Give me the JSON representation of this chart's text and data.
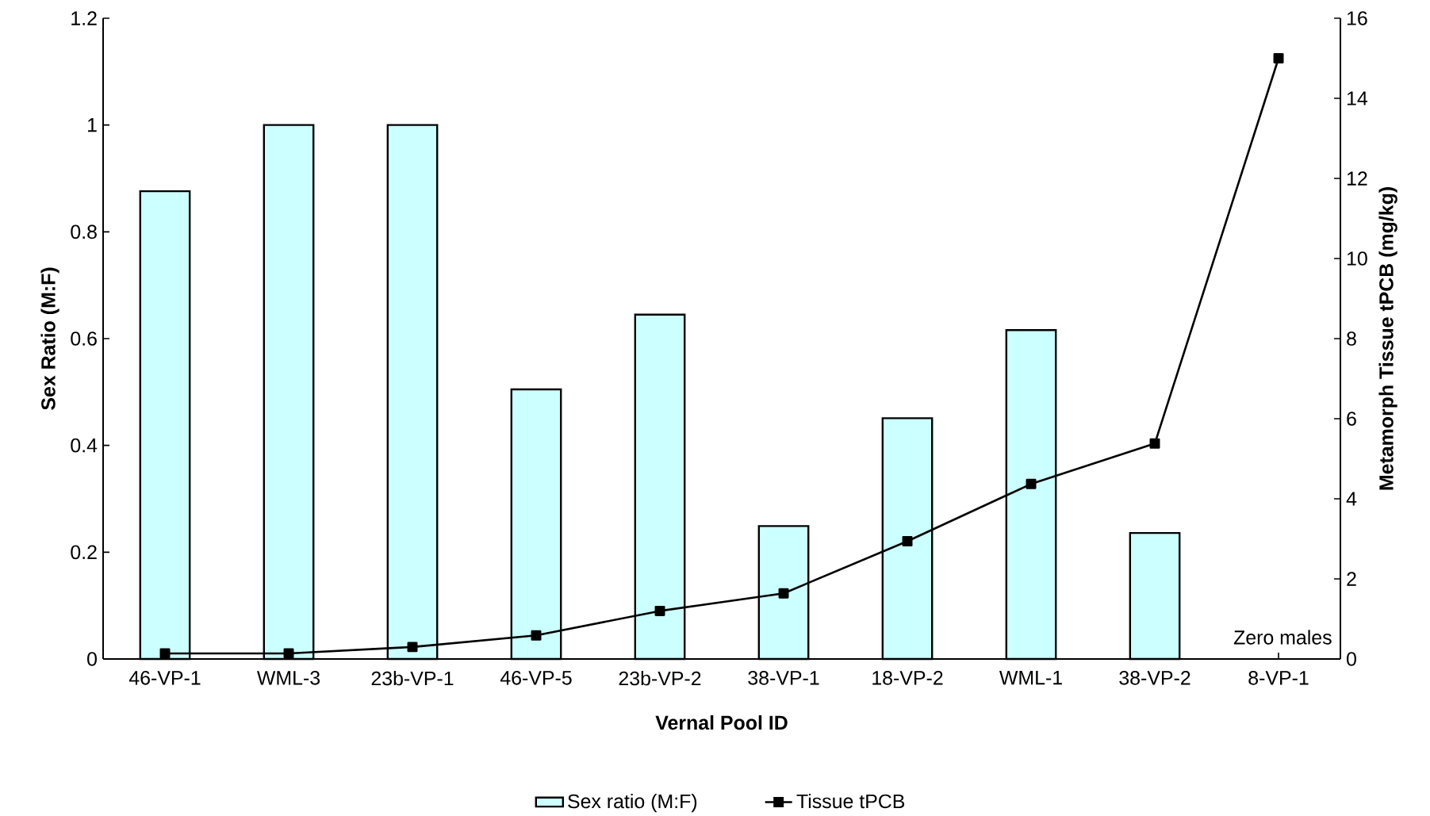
{
  "chart_data": {
    "type": "bar",
    "xlabel": "Vernal Pool ID",
    "ylabel": "Sex Ratio (M:F)",
    "y2label": "Metamorph Tissue tPCB (mg/kg)",
    "categories": [
      "46-VP-1",
      "WML-3",
      "23b-VP-1",
      "46-VP-5",
      "23b-VP-2",
      "38-VP-1",
      "18-VP-2",
      "WML-1",
      "38-VP-2",
      "8-VP-1"
    ],
    "series": [
      {
        "name": "Sex ratio (M:F)",
        "color": "#ccffff",
        "values": [
          0.876,
          1.0,
          1.0,
          0.505,
          0.645,
          0.249,
          0.451,
          0.616,
          0.236,
          0
        ]
      },
      {
        "name": "Tissue tPCB",
        "type": "line",
        "axis": "y2",
        "marker": "square",
        "color": "#000000",
        "values": [
          0.14,
          0.14,
          0.3,
          0.59,
          1.2,
          1.64,
          2.94,
          4.37,
          5.38,
          15.0
        ]
      }
    ],
    "ylim": [
      0,
      1.2
    ],
    "yticks": [
      0,
      0.2,
      0.4,
      0.6,
      0.8,
      1,
      1.2
    ],
    "y2lim": [
      0,
      16
    ],
    "y2ticks": [
      0,
      2,
      4,
      6,
      8,
      10,
      12,
      14,
      16
    ],
    "legend": "bottom",
    "annotations": [
      {
        "text": "Zero males",
        "x": "8-VP-1",
        "y": 0
      }
    ]
  }
}
